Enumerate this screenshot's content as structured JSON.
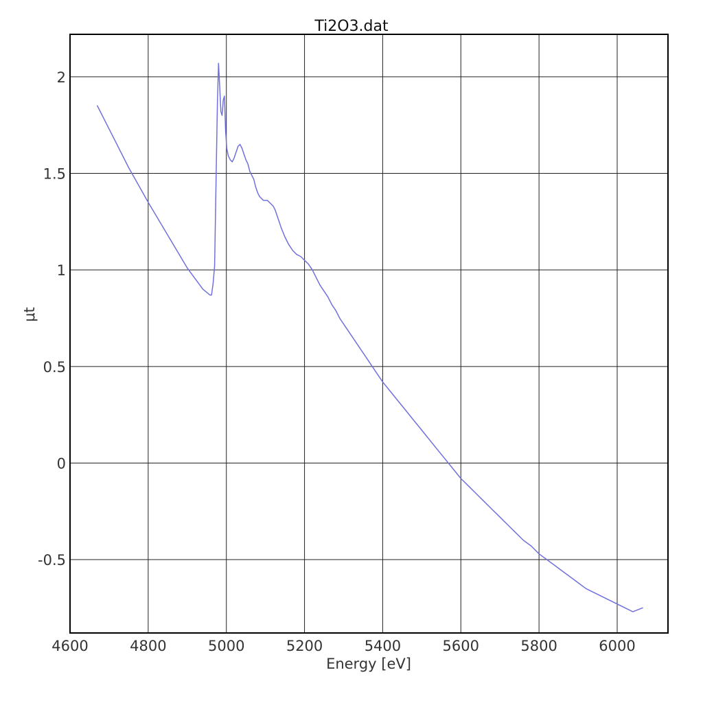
{
  "chart_data": {
    "type": "line",
    "title": "Ti2O3.dat",
    "xlabel": "Energy [eV]",
    "ylabel": "μt",
    "xlim": [
      4600,
      6130
    ],
    "ylim": [
      -0.88,
      2.22
    ],
    "grid": true,
    "x_ticks": [
      {
        "value": 4600,
        "label": "4600"
      },
      {
        "value": 4800,
        "label": "4800"
      },
      {
        "value": 5000,
        "label": "5000"
      },
      {
        "value": 5200,
        "label": "5200"
      },
      {
        "value": 5400,
        "label": "5400"
      },
      {
        "value": 5600,
        "label": "5600"
      },
      {
        "value": 5800,
        "label": "5800"
      },
      {
        "value": 6000,
        "label": "6000"
      }
    ],
    "y_ticks": [
      {
        "value": 2,
        "label": "2"
      },
      {
        "value": 1.5,
        "label": "1.5"
      },
      {
        "value": 1,
        "label": "1"
      },
      {
        "value": 0.5,
        "label": "0.5"
      },
      {
        "value": 0,
        "label": "0"
      },
      {
        "value": -0.5,
        "label": "-0.5"
      }
    ],
    "series": [
      {
        "color": "#7070dd",
        "x": [
          4670,
          4700,
          4750,
          4800,
          4850,
          4900,
          4940,
          4958,
          4962,
          4966,
          4970,
          4974,
          4977,
          4980,
          4983,
          4986,
          4989,
          4992,
          4995,
          4998,
          5001,
          5005,
          5010,
          5015,
          5020,
          5025,
          5030,
          5035,
          5040,
          5045,
          5050,
          5055,
          5060,
          5065,
          5070,
          5075,
          5080,
          5085,
          5090,
          5095,
          5100,
          5105,
          5110,
          5115,
          5120,
          5125,
          5130,
          5135,
          5140,
          5150,
          5160,
          5170,
          5180,
          5190,
          5200,
          5210,
          5220,
          5230,
          5240,
          5250,
          5260,
          5270,
          5280,
          5290,
          5300,
          5320,
          5340,
          5360,
          5380,
          5400,
          5420,
          5440,
          5460,
          5480,
          5500,
          5520,
          5540,
          5560,
          5580,
          5600,
          5620,
          5640,
          5660,
          5680,
          5700,
          5720,
          5740,
          5760,
          5780,
          5800,
          5820,
          5840,
          5860,
          5880,
          5900,
          5920,
          5940,
          5960,
          5980,
          6000,
          6020,
          6040,
          6065
        ],
        "values": [
          1.85,
          1.73,
          1.53,
          1.35,
          1.18,
          1.01,
          0.9,
          0.87,
          0.87,
          0.93,
          1.02,
          1.5,
          1.85,
          2.07,
          1.95,
          1.82,
          1.8,
          1.88,
          1.9,
          1.72,
          1.63,
          1.59,
          1.57,
          1.56,
          1.58,
          1.61,
          1.64,
          1.65,
          1.63,
          1.6,
          1.57,
          1.55,
          1.51,
          1.49,
          1.47,
          1.43,
          1.4,
          1.38,
          1.37,
          1.36,
          1.36,
          1.36,
          1.35,
          1.34,
          1.33,
          1.31,
          1.28,
          1.25,
          1.22,
          1.17,
          1.13,
          1.1,
          1.08,
          1.07,
          1.05,
          1.03,
          1.0,
          0.96,
          0.92,
          0.89,
          0.86,
          0.82,
          0.79,
          0.75,
          0.72,
          0.66,
          0.6,
          0.54,
          0.48,
          0.42,
          0.37,
          0.32,
          0.27,
          0.22,
          0.17,
          0.12,
          0.07,
          0.02,
          -0.03,
          -0.08,
          -0.12,
          -0.16,
          -0.2,
          -0.24,
          -0.28,
          -0.32,
          -0.36,
          -0.4,
          -0.43,
          -0.47,
          -0.5,
          -0.53,
          -0.56,
          -0.59,
          -0.62,
          -0.65,
          -0.67,
          -0.69,
          -0.71,
          -0.73,
          -0.75,
          -0.77,
          -0.75
        ]
      }
    ]
  }
}
